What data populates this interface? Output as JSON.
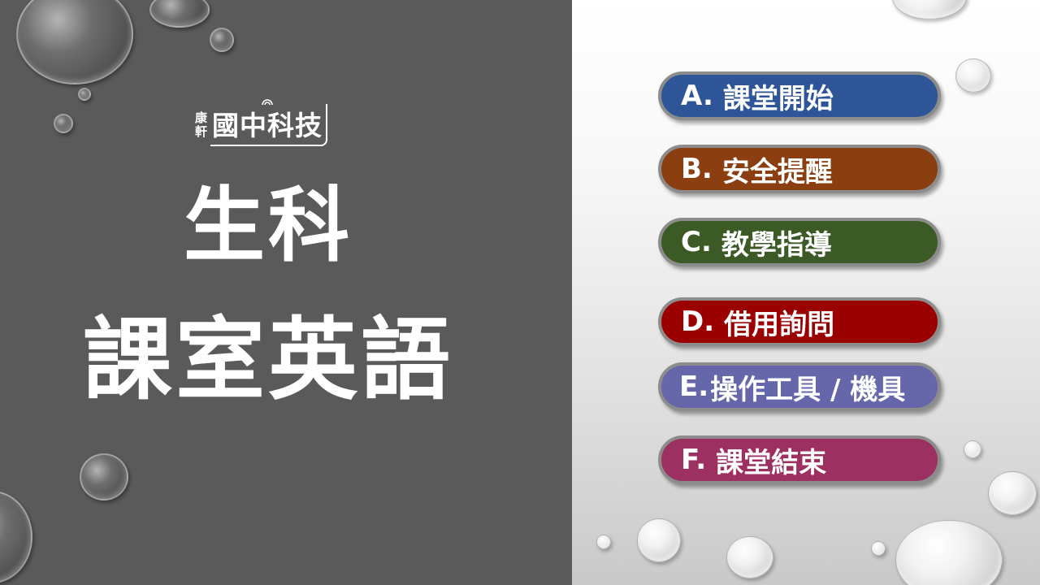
{
  "logo": {
    "small_top": "康",
    "small_bottom": "軒",
    "main": "國中科技"
  },
  "title": {
    "line1": "生科",
    "line2": "課室英語"
  },
  "menu": [
    {
      "letter": "A.",
      "label": "課堂開始",
      "color": "#2e5597"
    },
    {
      "letter": "B.",
      "label": "安全提醒",
      "color": "#8b3f10"
    },
    {
      "letter": "C.",
      "label": "教學指導",
      "color": "#3b5a25"
    },
    {
      "letter": "D.",
      "label": "借用詢問",
      "color": "#9a0000"
    },
    {
      "letter": "E.",
      "label": "操作工具 / 機具",
      "color": "#6667aa"
    },
    {
      "letter": "F.",
      "label": "課堂結束",
      "color": "#9c3060"
    }
  ]
}
